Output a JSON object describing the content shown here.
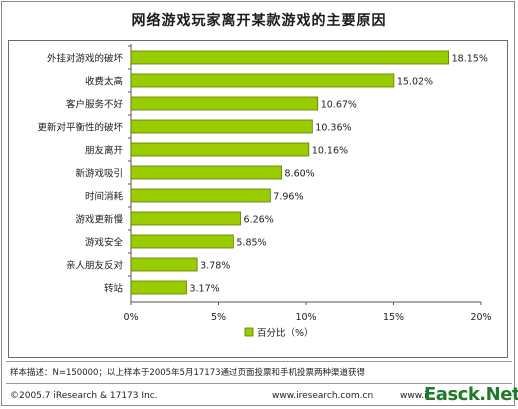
{
  "chart_data": {
    "type": "bar",
    "orientation": "horizontal",
    "title": "网络游戏玩家离开某款游戏的主要原因",
    "categories": [
      "外挂对游戏的破坏",
      "收费太高",
      "客户服务不好",
      "更新对平衡性的破坏",
      "朋友离开",
      "新游戏吸引",
      "时间消耗",
      "游戏更新慢",
      "游戏安全",
      "亲人朋友反对",
      "转站"
    ],
    "values": [
      18.15,
      15.02,
      10.67,
      10.36,
      10.16,
      8.6,
      7.96,
      6.26,
      5.85,
      3.78,
      3.17
    ],
    "value_labels": [
      "18.15%",
      "15.02%",
      "10.67%",
      "10.36%",
      "10.16%",
      "8.60%",
      "7.96%",
      "6.26%",
      "5.85%",
      "3.78%",
      "3.17%"
    ],
    "xlim": [
      0,
      20
    ],
    "xticks": [
      "0%",
      "5%",
      "10%",
      "15%",
      "20%"
    ],
    "legend": "百分比（%）",
    "legend_position": "bottom",
    "grid": false,
    "colors": {
      "bar": "#99cc00",
      "bar_border": "#5a7a00",
      "axis": "#555555"
    }
  },
  "footer": {
    "note": "样本描述：N=150000；以上样本于2005年5月17173通过页面投票和手机投票两种渠道获得",
    "copyright": "©2005.7 iResearch & 17173 Inc.",
    "website": "www.iresearch.com.cn",
    "website2": "www.i",
    "watermark": "Easck.Net"
  }
}
